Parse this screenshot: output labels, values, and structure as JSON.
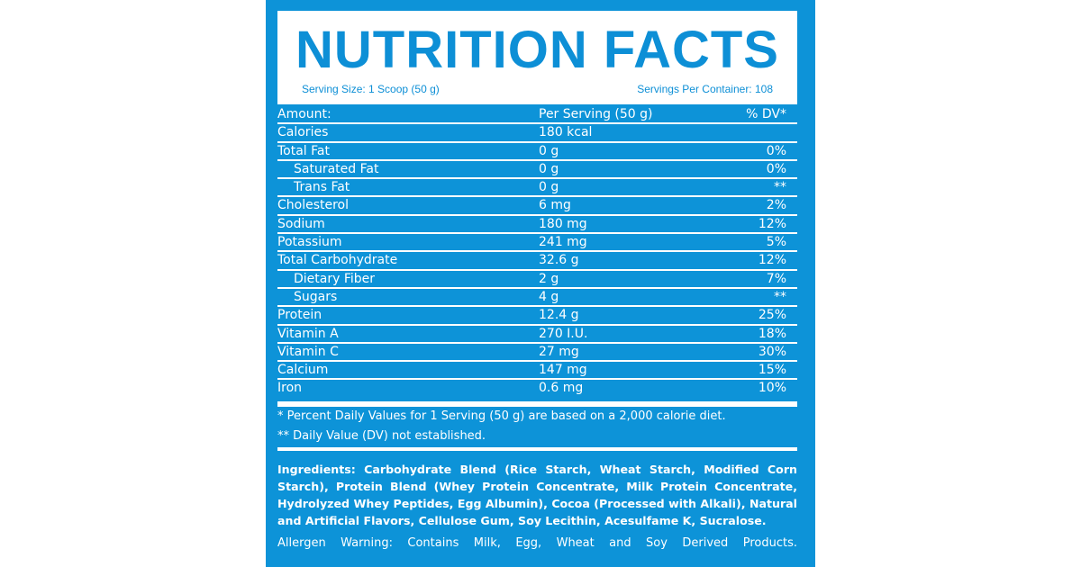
{
  "header": {
    "title": "NUTRITION FACTS",
    "serving_size": "Serving Size: 1  Scoop (50 g)",
    "servings_per_container": "Servings Per Container: 108"
  },
  "table": {
    "rows": [
      [
        "Amount:",
        "Per Serving (50 g)",
        "% DV*"
      ],
      [
        "Calories",
        "180 kcal"
      ],
      [
        "Total Fat",
        "0 g",
        "0%"
      ],
      [
        "Saturated Fat",
        "0 g",
        "0%"
      ],
      [
        "Trans Fat",
        "0 g",
        "**"
      ],
      [
        "Cholesterol",
        "6 mg",
        "2%"
      ],
      [
        "Sodium",
        "180 mg",
        "12%"
      ],
      [
        "Potassium",
        "241 mg",
        "5%"
      ],
      [
        "Total Carbohydrate",
        "32.6 g",
        "12%"
      ],
      [
        "Dietary Fiber",
        "2 g",
        "7%"
      ],
      [
        "Sugars",
        "4 g",
        "**"
      ],
      [
        "Protein",
        "12.4 g",
        "25%"
      ],
      [
        "Vitamin A",
        "270 I.U.",
        "18%"
      ],
      [
        "Vitamin C",
        "27 mg",
        "30%"
      ],
      [
        "Calcium",
        "147 mg",
        "15%"
      ],
      [
        "Iron",
        "0.6 mg",
        "10%"
      ]
    ]
  },
  "footnotes": [
    "* Percent Daily Values for 1 Serving (50 g) are based on a 2,000 calorie diet.",
    "** Daily Value (DV) not established."
  ],
  "ingredients": "Ingredients: Carbohydrate Blend (Rice Starch, Wheat Starch, Modified Corn Starch), Protein Blend (Whey Protein Concentrate, Milk Protein Concentrate, Hydrolyzed Whey Peptides, Egg Albumin), Cocoa (Processed with Alkali), Natural and Artificial Flavors, Cellulose Gum, Soy Lecithin, Acesulfame K, Sucralose.",
  "allergen": "Allergen Warning: Contains Milk, Egg, Wheat and Soy Derived Products."
}
